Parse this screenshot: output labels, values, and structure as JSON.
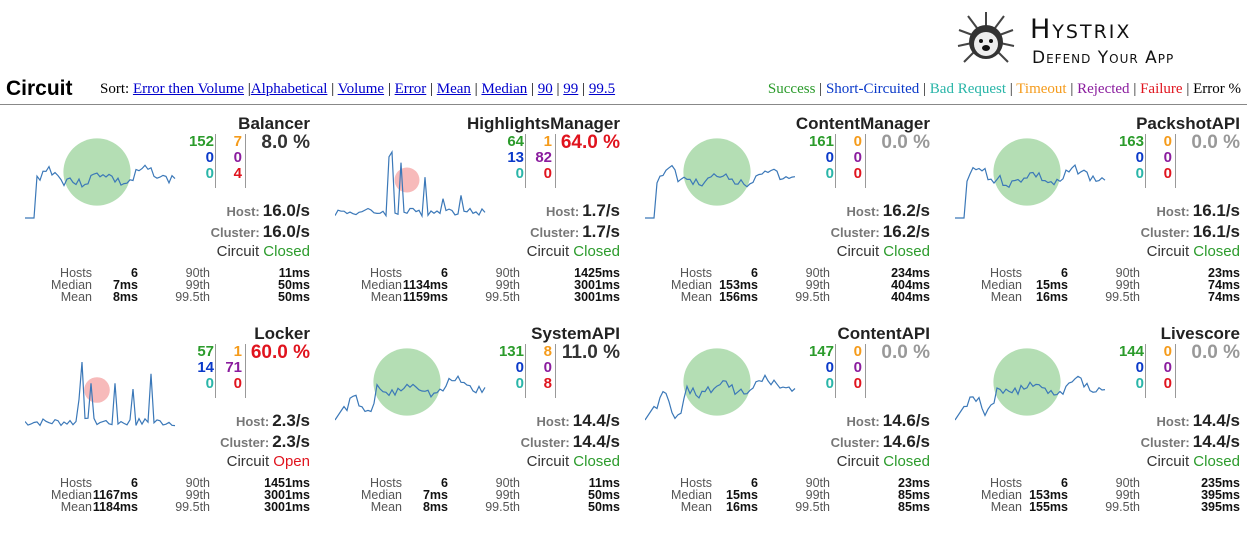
{
  "header": {
    "title": "Circuit",
    "sort_prefix": "Sort:",
    "sort_links": [
      "Error then Volume",
      "Alphabetical",
      "Volume",
      "Error",
      "Mean",
      "Median",
      "90",
      "99",
      "99.5"
    ],
    "legend": [
      {
        "label": "Success",
        "color": "#2b9b2b"
      },
      {
        "label": "Short-Circuited",
        "color": "#0a39c9"
      },
      {
        "label": "Bad Request",
        "color": "#29b5a8"
      },
      {
        "label": "Timeout",
        "color": "#f59b1b"
      },
      {
        "label": "Rejected",
        "color": "#8a1c9e"
      },
      {
        "label": "Failure",
        "color": "#e0141e"
      },
      {
        "label": "Error %",
        "color": "#000000"
      }
    ]
  },
  "logo": {
    "line1": "Hystrix",
    "line2": "Defend Your App"
  },
  "labels": {
    "host": "Host:",
    "cluster": "Cluster:",
    "circuit": "Circuit",
    "hosts": "Hosts",
    "median": "Median",
    "mean": "Mean",
    "p90": "90th",
    "p99": "99th",
    "p995": "99.5th"
  },
  "circuits": [
    {
      "name": "Balancer",
      "success": "152",
      "short": "0",
      "bad": "0",
      "timeout": "7",
      "rejected": "0",
      "failure": "4",
      "error_pct": "8.0 %",
      "host_rate": "16.0/s",
      "cluster_rate": "16.0/s",
      "status": "Closed",
      "hosts": "6",
      "median": "7ms",
      "mean": "8ms",
      "p90": "11ms",
      "p99": "50ms",
      "p995": "50ms",
      "health": "green",
      "volume": 0.9
    },
    {
      "name": "HighlightsManager",
      "success": "64",
      "short": "13",
      "bad": "0",
      "timeout": "1",
      "rejected": "82",
      "failure": "0",
      "error_pct": "64.0 %",
      "host_rate": "1.7/s",
      "cluster_rate": "1.7/s",
      "status": "Closed",
      "hosts": "6",
      "median": "1134ms",
      "mean": "1159ms",
      "p90": "1425ms",
      "p99": "3001ms",
      "p995": "3001ms",
      "health": "red",
      "volume": 0.45
    },
    {
      "name": "ContentManager",
      "success": "161",
      "short": "0",
      "bad": "0",
      "timeout": "0",
      "rejected": "0",
      "failure": "0",
      "error_pct": "0.0 %",
      "host_rate": "16.2/s",
      "cluster_rate": "16.2/s",
      "status": "Closed",
      "hosts": "6",
      "median": "153ms",
      "mean": "156ms",
      "p90": "234ms",
      "p99": "404ms",
      "p995": "404ms",
      "health": "green",
      "volume": 0.9
    },
    {
      "name": "PackshotAPI",
      "success": "163",
      "short": "0",
      "bad": "0",
      "timeout": "0",
      "rejected": "0",
      "failure": "0",
      "error_pct": "0.0 %",
      "host_rate": "16.1/s",
      "cluster_rate": "16.1/s",
      "status": "Closed",
      "hosts": "6",
      "median": "15ms",
      "mean": "16ms",
      "p90": "23ms",
      "p99": "74ms",
      "p995": "74ms",
      "health": "green",
      "volume": 0.9
    },
    {
      "name": "Locker",
      "success": "57",
      "short": "14",
      "bad": "0",
      "timeout": "1",
      "rejected": "71",
      "failure": "0",
      "error_pct": "60.0 %",
      "host_rate": "2.3/s",
      "cluster_rate": "2.3/s",
      "status": "Open",
      "hosts": "6",
      "median": "1167ms",
      "mean": "1184ms",
      "p90": "1451ms",
      "p99": "3001ms",
      "p995": "3001ms",
      "health": "red",
      "volume": 0.5
    },
    {
      "name": "SystemAPI",
      "success": "131",
      "short": "0",
      "bad": "0",
      "timeout": "8",
      "rejected": "0",
      "failure": "8",
      "error_pct": "11.0 %",
      "host_rate": "14.4/s",
      "cluster_rate": "14.4/s",
      "status": "Closed",
      "hosts": "6",
      "median": "7ms",
      "mean": "8ms",
      "p90": "11ms",
      "p99": "50ms",
      "p995": "50ms",
      "health": "green",
      "volume": 0.9
    },
    {
      "name": "ContentAPI",
      "success": "147",
      "short": "0",
      "bad": "0",
      "timeout": "0",
      "rejected": "0",
      "failure": "0",
      "error_pct": "0.0 %",
      "host_rate": "14.6/s",
      "cluster_rate": "14.6/s",
      "status": "Closed",
      "hosts": "6",
      "median": "15ms",
      "mean": "16ms",
      "p90": "23ms",
      "p99": "85ms",
      "p995": "85ms",
      "health": "green",
      "volume": 0.9
    },
    {
      "name": "Livescore",
      "success": "144",
      "short": "0",
      "bad": "0",
      "timeout": "0",
      "rejected": "0",
      "failure": "0",
      "error_pct": "0.0 %",
      "host_rate": "14.4/s",
      "cluster_rate": "14.4/s",
      "status": "Closed",
      "hosts": "6",
      "median": "153ms",
      "mean": "155ms",
      "p90": "235ms",
      "p99": "395ms",
      "p995": "395ms",
      "health": "green",
      "volume": 0.9
    }
  ],
  "colors": {
    "success": "#2b9b2b",
    "short": "#0a39c9",
    "bad": "#29b5a8",
    "timeout": "#f59b1b",
    "rejected": "#8a1c9e",
    "failure": "#e0141e",
    "zero_pct": "#999999",
    "sparkline": "#3b78b8",
    "closed": "#2b9b2b",
    "open": "#e0141e",
    "circle_green": "#9bd39b",
    "circle_red": "#f4a3a3"
  }
}
